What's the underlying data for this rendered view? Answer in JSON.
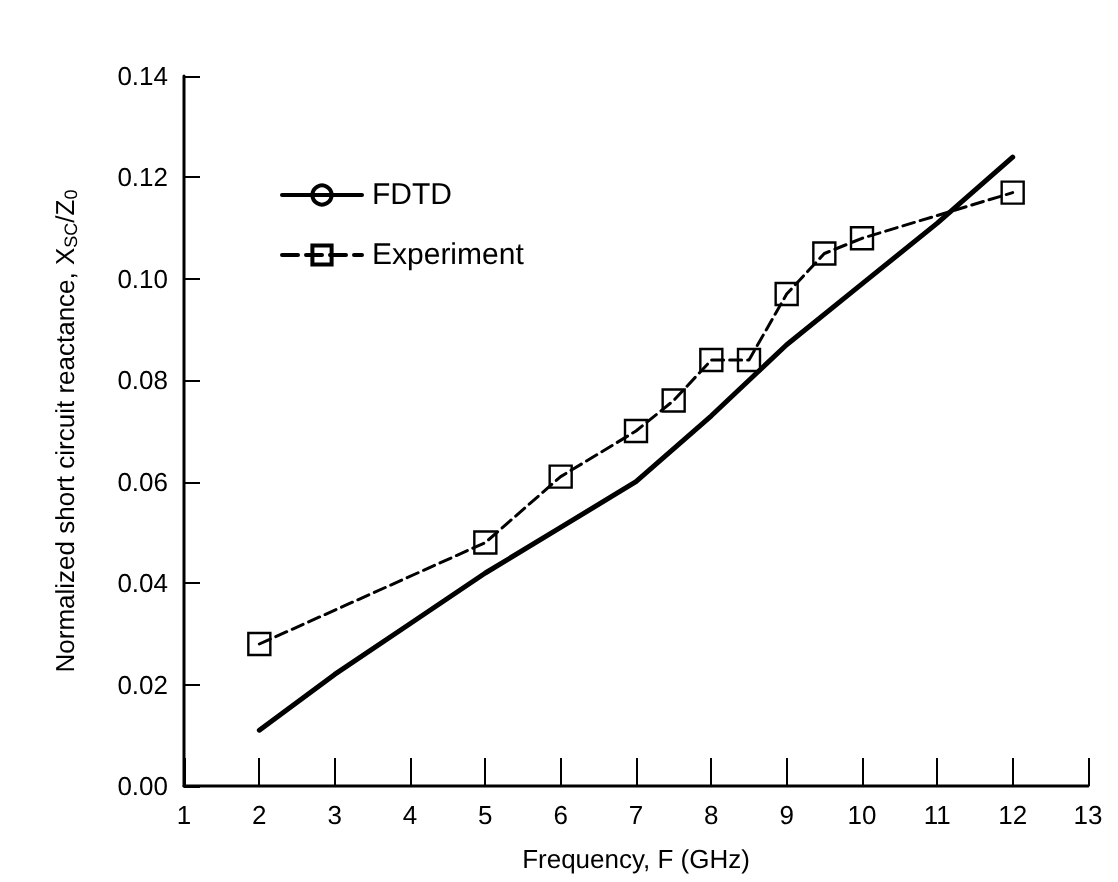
{
  "chart_data": {
    "type": "line",
    "xlabel": "Frequency, F (GHz)",
    "ylabel": "Normalized short circuit reactance, X$_{SC}$/Z$_{0}$",
    "xlim": [
      1,
      13
    ],
    "xticks": [
      1,
      2,
      3,
      4,
      5,
      6,
      7,
      8,
      9,
      10,
      11,
      12,
      13
    ],
    "ylim": [
      0,
      0.14
    ],
    "yticks": [
      {
        "value": 0,
        "label": "0.00"
      },
      {
        "value": 0.02,
        "label": "0.02"
      },
      {
        "value": 0.04,
        "label": "0.04"
      },
      {
        "value": 0.06,
        "label": "0.06"
      },
      {
        "value": 0.08,
        "label": "0.08"
      },
      {
        "value": 0.1,
        "label": "0.10"
      },
      {
        "value": 0.12,
        "label": "0.12"
      },
      {
        "value": 0.14,
        "label": "0.14"
      }
    ],
    "grid": false,
    "legend": "top left",
    "series": [
      {
        "name": "FDTD",
        "color": "#000000",
        "marker": "none",
        "line_style": "solid",
        "x": [
          2,
          3,
          4,
          5,
          6,
          7,
          8,
          9,
          10,
          11,
          12
        ],
        "values": [
          0.011,
          0.022,
          0.032,
          0.042,
          0.051,
          0.06,
          0.073,
          0.087,
          0.099,
          0.111,
          0.124
        ]
      },
      {
        "name": "Experiment",
        "color": "#000000",
        "marker": "square",
        "line_style": "dashed",
        "x": [
          2,
          5,
          6,
          7,
          7.5,
          8,
          8.5,
          9,
          9.5,
          10,
          12
        ],
        "values": [
          0.028,
          0.048,
          0.061,
          0.07,
          0.076,
          0.084,
          0.084,
          0.097,
          0.105,
          0.108,
          0.117
        ]
      }
    ]
  }
}
